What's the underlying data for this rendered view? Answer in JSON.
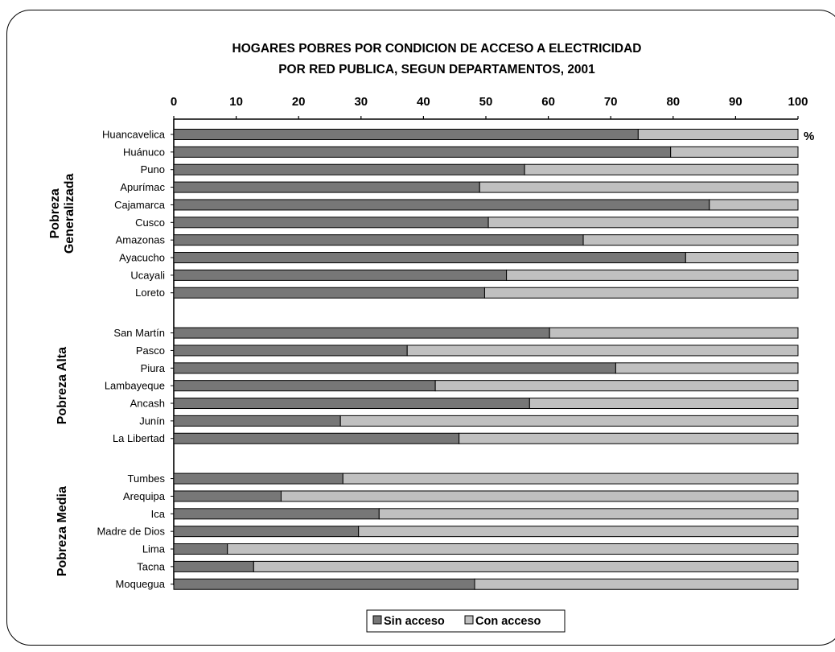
{
  "chart_data": {
    "type": "bar",
    "orientation": "horizontal",
    "stacked": true,
    "title": [
      "HOGARES POBRES POR CONDICION DE ACCESO A  ELECTRICIDAD",
      "POR RED PUBLICA, SEGUN DEPARTAMENTOS, 2001"
    ],
    "x_unit": "%",
    "xlim": [
      0,
      100
    ],
    "x_ticks": [
      0,
      10,
      20,
      30,
      40,
      50,
      60,
      70,
      80,
      90,
      100
    ],
    "x_axis_position": "top",
    "grid": false,
    "legend_position": "bottom-center",
    "series": [
      {
        "name": "Sin acceso",
        "color": "#777777"
      },
      {
        "name": "Con acceso",
        "color": "#c0c0c0"
      }
    ],
    "groups": [
      {
        "label": [
          "Pobreza",
          "Generalizada"
        ],
        "categories": [
          "Huancavelica",
          "Huánuco",
          "Puno",
          "Apurímac",
          "Cajamarca",
          "Cusco",
          "Amazonas",
          "Ayacucho",
          "Ucayali",
          "Loreto"
        ],
        "sin_acceso": [
          74.4,
          79.6,
          56.2,
          49.0,
          85.8,
          50.4,
          65.6,
          82.0,
          53.3,
          49.8
        ]
      },
      {
        "label": [
          "Pobreza  Alta"
        ],
        "categories": [
          "San Martín",
          "Pasco",
          "Piura",
          "Lambayeque",
          "Ancash",
          "Junín",
          "La Libertad"
        ],
        "sin_acceso": [
          60.2,
          37.4,
          70.8,
          41.9,
          57.0,
          26.7,
          45.7
        ]
      },
      {
        "label": [
          "Pobreza  Media"
        ],
        "categories": [
          "Tumbes",
          "Arequipa",
          "Ica",
          "Madre de Dios",
          "Lima",
          "Tacna",
          "Moquegua"
        ],
        "sin_acceso": [
          27.1,
          17.2,
          32.9,
          29.6,
          8.6,
          12.8,
          48.2
        ]
      }
    ]
  }
}
